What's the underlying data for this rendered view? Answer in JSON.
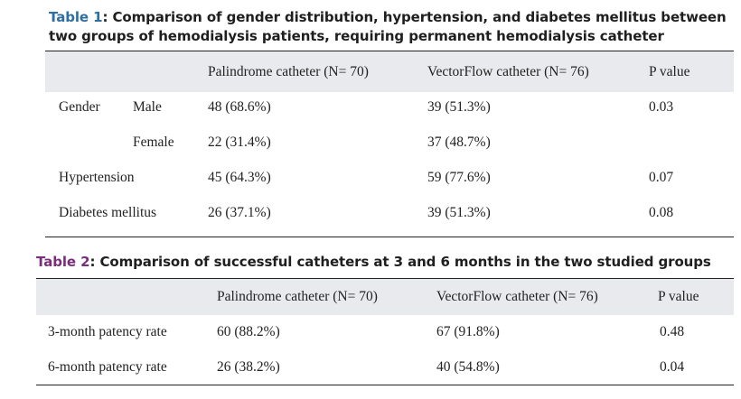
{
  "table1": {
    "label": "Table 1",
    "caption": ": Comparison of gender distribution, hypertension, and diabetes mellitus between two groups of hemodialysis patients, requiring permanent hemodialysis catheter",
    "headers": [
      "Palindrome catheter (N= 70)",
      "VectorFlow catheter (N= 76)",
      "P value"
    ],
    "rows": [
      {
        "label": "Gender",
        "sublabel": "Male",
        "palindrome": "48 (68.6%)",
        "vectorflow": "39 (51.3%)",
        "p": "0.03"
      },
      {
        "label": "",
        "sublabel": "Female",
        "palindrome": "22 (31.4%)",
        "vectorflow": "37 (48.7%)",
        "p": ""
      },
      {
        "label": "Hypertension",
        "sublabel": "",
        "palindrome": "45 (64.3%)",
        "vectorflow": "59 (77.6%)",
        "p": "0.07"
      },
      {
        "label": "Diabetes mellitus",
        "sublabel": "",
        "palindrome": "26 (37.1%)",
        "vectorflow": "39 (51.3%)",
        "p": "0.08"
      }
    ]
  },
  "table2": {
    "label": "Table 2",
    "caption": ": Comparison of successful catheters at 3 and 6 months in the two studied groups",
    "headers": [
      "Palindrome catheter (N= 70)",
      "VectorFlow catheter (N= 76)",
      "P value"
    ],
    "rows": [
      {
        "label": "3-month patency rate",
        "palindrome": "60 (88.2%)",
        "vectorflow": "67 (91.8%)",
        "p": "0.48"
      },
      {
        "label": "6-month patency rate",
        "palindrome": "26 (38.2%)",
        "vectorflow": "40 (54.8%)",
        "p": "0.04"
      }
    ]
  },
  "colors": {
    "table1_label": "#2e6fa3",
    "table2_label": "#7a2d7a",
    "header_bg": "#e9eaed",
    "text": "#222222"
  }
}
